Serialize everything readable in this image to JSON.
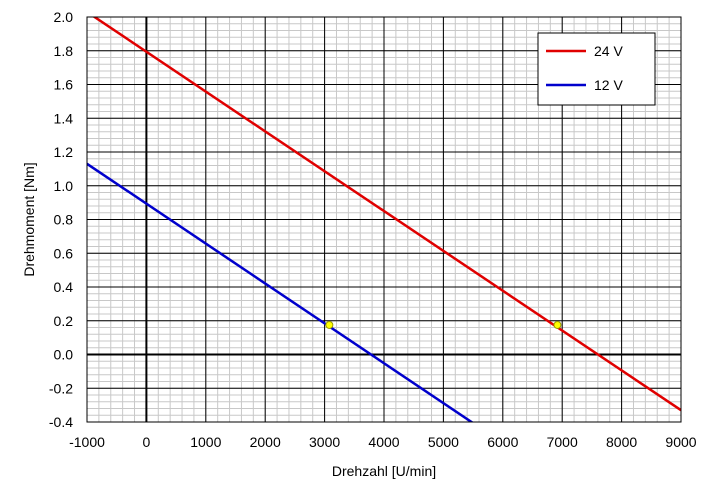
{
  "chart_data": {
    "type": "line",
    "title": "",
    "xlabel": "Drehzahl [U/min]",
    "ylabel": "Drehmoment [Nm]",
    "xlim": [
      -1000,
      9000
    ],
    "ylim": [
      -0.4,
      2.0
    ],
    "x_ticks": [
      -1000,
      0,
      1000,
      2000,
      3000,
      4000,
      5000,
      6000,
      7000,
      8000,
      9000
    ],
    "x_tick_labels": [
      "-1000",
      "0",
      "1000",
      "2000",
      "3000",
      "4000",
      "5000",
      "6000",
      "7000",
      "8000",
      "9000"
    ],
    "y_ticks": [
      -0.4,
      -0.2,
      0.0,
      0.2,
      0.4,
      0.6,
      0.8,
      1.0,
      1.2,
      1.4,
      1.6,
      1.8,
      2.0
    ],
    "y_tick_labels": [
      "-0.4",
      "-0.2",
      "0.0",
      "0.2",
      "0.4",
      "0.6",
      "0.8",
      "1.0",
      "1.2",
      "1.4",
      "1.6",
      "1.8",
      "2.0"
    ],
    "x_minor_step": 200,
    "y_minor_step": 0.04,
    "grid": true,
    "legend_position": "top-right",
    "series": [
      {
        "name": "24 V",
        "color": "#e00000",
        "x": [
          -1000,
          9000
        ],
        "y": [
          2.03,
          -0.33
        ]
      },
      {
        "name": "12 V",
        "color": "#0000cc",
        "x": [
          -1000,
          5600
        ],
        "y": [
          1.13,
          -0.43
        ]
      }
    ],
    "markers": [
      {
        "series": "12 V",
        "x": 3080,
        "y": 0.175,
        "color": "#ffff00"
      },
      {
        "series": "24 V",
        "x": 6920,
        "y": 0.175,
        "color": "#ffff00"
      }
    ]
  }
}
